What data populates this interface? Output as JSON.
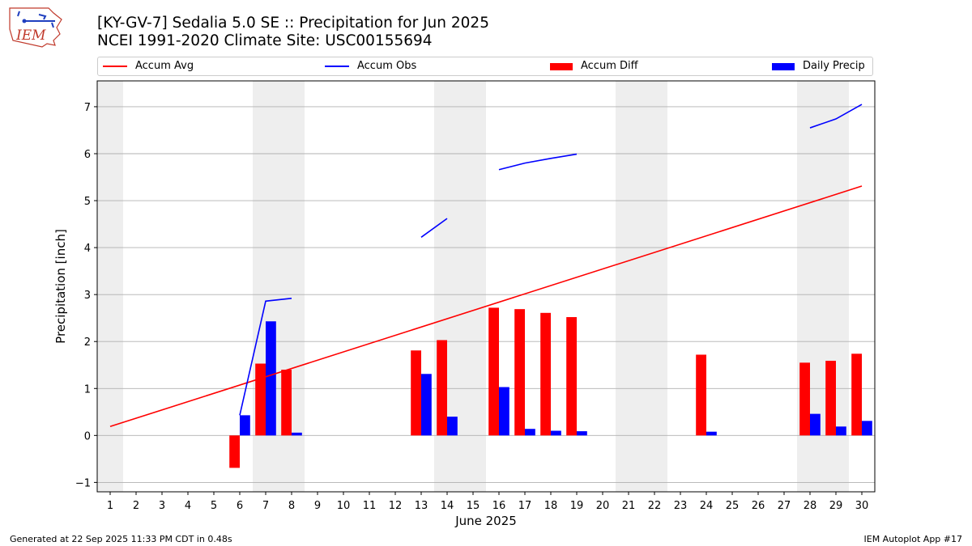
{
  "header": {
    "title_line1": "[KY-GV-7] Sedalia 5.0 SE :: Precipitation for Jun 2025",
    "title_line2": "NCEI 1991-2020 Climate Site: USC00155694",
    "logo_text": "IEM"
  },
  "footer": {
    "generated": "Generated at 22 Sep 2025 11:33 PM CDT in 0.48s",
    "app": "IEM Autoplot App #17"
  },
  "colors": {
    "accum_avg": "#ff0000",
    "accum_obs": "#0000ff",
    "accum_diff": "#ff0000",
    "daily_precip": "#0000ff",
    "weekend_shade": "#eeeeee",
    "grid": "#b0b0b0"
  },
  "chart_data": {
    "type": "bar",
    "xlabel": "June 2025",
    "ylabel": "Precipitation [inch]",
    "xlim": [
      0.5,
      30.5
    ],
    "ylim": [
      -1.2,
      7.55
    ],
    "grid": "horizontal",
    "legend_position": "top",
    "days": [
      1,
      2,
      3,
      4,
      5,
      6,
      7,
      8,
      9,
      10,
      11,
      12,
      13,
      14,
      15,
      16,
      17,
      18,
      19,
      20,
      21,
      22,
      23,
      24,
      25,
      26,
      27,
      28,
      29,
      30
    ],
    "yticks": [
      -1,
      0,
      1,
      2,
      3,
      4,
      5,
      6,
      7
    ],
    "weekends": [
      [
        0.5,
        1.5
      ],
      [
        6.5,
        8.5
      ],
      [
        13.5,
        15.5
      ],
      [
        20.5,
        22.5
      ],
      [
        27.5,
        29.5
      ]
    ],
    "legend": [
      "Accum Avg",
      "Accum Obs",
      "Accum Diff",
      "Daily Precip"
    ],
    "series": [
      {
        "name": "Accum Avg",
        "kind": "line",
        "x": [
          1,
          30
        ],
        "values": [
          0.19,
          5.31
        ]
      },
      {
        "name": "Accum Obs",
        "kind": "line",
        "segments": [
          {
            "x": [
              6,
              7,
              8
            ],
            "values": [
              0.43,
              2.86,
              2.92
            ]
          },
          {
            "x": [
              13,
              14
            ],
            "values": [
              4.22,
              4.62
            ]
          },
          {
            "x": [
              16,
              17,
              18,
              19
            ],
            "values": [
              5.66,
              5.8,
              5.9,
              5.99
            ]
          },
          {
            "x": [
              28,
              29,
              30
            ],
            "values": [
              6.55,
              6.74,
              7.05
            ]
          }
        ]
      },
      {
        "name": "Accum Diff",
        "kind": "bar",
        "x": [
          6,
          7,
          8,
          13,
          14,
          16,
          17,
          18,
          19,
          24,
          28,
          29,
          30
        ],
        "values": [
          -0.69,
          1.53,
          1.4,
          1.81,
          2.03,
          2.72,
          2.69,
          2.61,
          2.52,
          1.72,
          1.55,
          1.59,
          1.74
        ]
      },
      {
        "name": "Daily Precip",
        "kind": "bar",
        "x": [
          6,
          7,
          8,
          13,
          14,
          16,
          17,
          18,
          19,
          24,
          28,
          29,
          30
        ],
        "values": [
          0.43,
          2.43,
          0.06,
          1.31,
          0.4,
          1.03,
          0.14,
          0.1,
          0.09,
          0.08,
          0.46,
          0.19,
          0.31
        ]
      }
    ]
  }
}
